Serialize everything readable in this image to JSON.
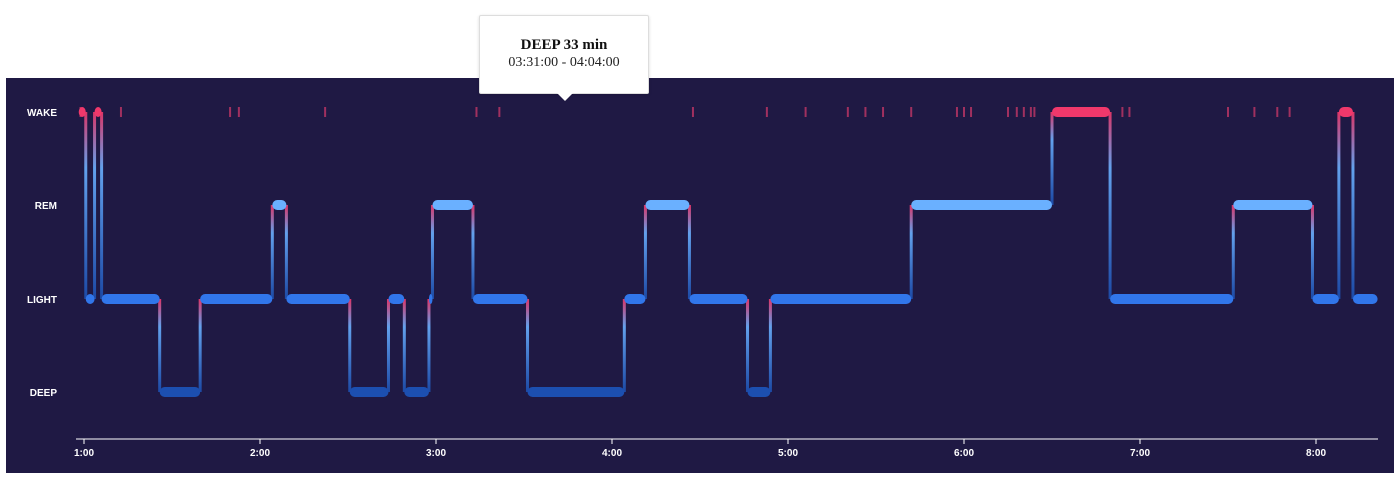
{
  "chart_data": {
    "type": "step-line",
    "title": "",
    "xlabel": "",
    "ylabel": "",
    "stages": [
      "WAKE",
      "REM",
      "LIGHT",
      "DEEP"
    ],
    "x_ticks": [
      "1:00",
      "2:00",
      "3:00",
      "4:00",
      "5:00",
      "6:00",
      "7:00",
      "8:00"
    ],
    "x_range_hours": [
      0.97,
      8.37
    ],
    "segments": [
      {
        "stage": "WAKE",
        "start": 0.97,
        "end": 1.01
      },
      {
        "stage": "LIGHT",
        "start": 1.01,
        "end": 1.06
      },
      {
        "stage": "WAKE",
        "start": 1.06,
        "end": 1.1
      },
      {
        "stage": "LIGHT",
        "start": 1.1,
        "end": 1.43
      },
      {
        "stage": "DEEP",
        "start": 1.43,
        "end": 1.66
      },
      {
        "stage": "LIGHT",
        "start": 1.66,
        "end": 2.07
      },
      {
        "stage": "REM",
        "start": 2.07,
        "end": 2.15
      },
      {
        "stage": "LIGHT",
        "start": 2.15,
        "end": 2.51
      },
      {
        "stage": "DEEP",
        "start": 2.51,
        "end": 2.73
      },
      {
        "stage": "LIGHT",
        "start": 2.73,
        "end": 2.82
      },
      {
        "stage": "DEEP",
        "start": 2.82,
        "end": 2.96
      },
      {
        "stage": "LIGHT",
        "start": 2.96,
        "end": 2.98
      },
      {
        "stage": "REM",
        "start": 2.98,
        "end": 3.21
      },
      {
        "stage": "LIGHT",
        "start": 3.21,
        "end": 3.52
      },
      {
        "stage": "DEEP",
        "start": 3.52,
        "end": 4.07
      },
      {
        "stage": "LIGHT",
        "start": 4.07,
        "end": 4.19
      },
      {
        "stage": "REM",
        "start": 4.19,
        "end": 4.44
      },
      {
        "stage": "LIGHT",
        "start": 4.44,
        "end": 4.77
      },
      {
        "stage": "DEEP",
        "start": 4.77,
        "end": 4.9
      },
      {
        "stage": "LIGHT",
        "start": 4.9,
        "end": 5.7
      },
      {
        "stage": "REM",
        "start": 5.7,
        "end": 6.5
      },
      {
        "stage": "WAKE",
        "start": 6.5,
        "end": 6.83
      },
      {
        "stage": "LIGHT",
        "start": 6.83,
        "end": 7.53
      },
      {
        "stage": "REM",
        "start": 7.53,
        "end": 7.98
      },
      {
        "stage": "LIGHT",
        "start": 7.98,
        "end": 8.13
      },
      {
        "stage": "WAKE",
        "start": 8.13,
        "end": 8.21
      },
      {
        "stage": "LIGHT",
        "start": 8.21,
        "end": 8.35
      }
    ],
    "brief_wakes": [
      0.98,
      1.21,
      1.83,
      1.88,
      2.37,
      3.23,
      3.36,
      4.46,
      4.88,
      5.1,
      5.34,
      5.44,
      5.54,
      5.7,
      5.96,
      6.0,
      6.04,
      6.25,
      6.3,
      6.34,
      6.38,
      6.4,
      6.9,
      6.94,
      7.5,
      7.65,
      7.78,
      7.85
    ],
    "colors": {
      "background": "#1f1944",
      "wake": "#f0386b",
      "rem": "#6ab0ff",
      "light": "#3176ea",
      "deep": "#1c4fb0",
      "brief_wake": "#a0305f",
      "axis": "#ffffff"
    },
    "tooltip": {
      "title": "DEEP 33 min",
      "time": "03:31:00 - 04:04:00"
    }
  }
}
